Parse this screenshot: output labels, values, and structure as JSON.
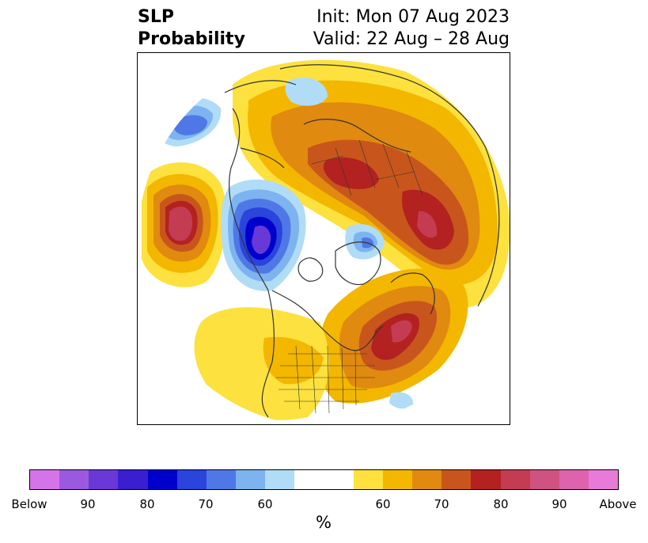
{
  "title": {
    "left_line1": "SLP",
    "left_line2": "Probability",
    "right_line1": "Init: Mon 07 Aug 2023",
    "right_line2": "Valid: 22 Aug – 28 Aug"
  },
  "colorbar": {
    "unit": "%",
    "colors": [
      "#d474e8",
      "#9b59e0",
      "#6a38d6",
      "#3a1fd0",
      "#0000cd",
      "#2a44dc",
      "#4f78e6",
      "#7db3ef",
      "#b0dcf7",
      "#ffffff",
      "#ffffff",
      "#fde13e",
      "#f3b700",
      "#e08a0f",
      "#c8561c",
      "#b32121",
      "#c43c52",
      "#cf5280",
      "#dd63ad",
      "#e87ad8"
    ],
    "tick_labels": [
      "Below",
      "90",
      "80",
      "70",
      "60",
      "60",
      "70",
      "80",
      "90",
      "Above"
    ]
  },
  "map": {
    "projection": "north-polar-stereographic",
    "variable": "sea-level-pressure-probability"
  }
}
